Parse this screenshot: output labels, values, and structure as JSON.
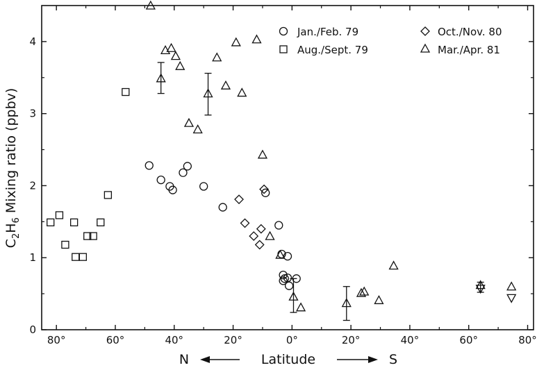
{
  "chart_data": {
    "type": "scatter",
    "title": "",
    "ylabel_parts": [
      "C",
      "2",
      "H",
      "6",
      " Mixing ratio  (ppbv)"
    ],
    "xlabel": "Latitude",
    "xlabel_left": "N",
    "xlabel_right": "S",
    "xlim": [
      85,
      -82
    ],
    "ylim": [
      0,
      4.5
    ],
    "x_ticks": [
      {
        "value": 80,
        "label": "80°"
      },
      {
        "value": 60,
        "label": "60°"
      },
      {
        "value": 40,
        "label": "40°"
      },
      {
        "value": 20,
        "label": "20°"
      },
      {
        "value": 0,
        "label": "0°"
      },
      {
        "value": -20,
        "label": "20°"
      },
      {
        "value": -40,
        "label": "40°"
      },
      {
        "value": -60,
        "label": "60°"
      },
      {
        "value": -80,
        "label": "80°"
      }
    ],
    "y_ticks": [
      {
        "value": 0,
        "label": "0"
      },
      {
        "value": 1,
        "label": "1"
      },
      {
        "value": 2,
        "label": "2"
      },
      {
        "value": 3,
        "label": "3"
      },
      {
        "value": 4,
        "label": "4"
      }
    ],
    "grid": false,
    "legend_placement": "top-right",
    "series": [
      {
        "name": "Jan./Feb. 79",
        "marker": "circle",
        "points": [
          [
            48.5,
            2.28
          ],
          [
            44.5,
            2.08
          ],
          [
            41.5,
            1.99
          ],
          [
            40.5,
            1.94
          ],
          [
            37,
            2.18
          ],
          [
            35.5,
            2.27
          ],
          [
            30,
            1.99
          ],
          [
            23.5,
            1.7
          ],
          [
            9,
            1.9
          ],
          [
            4.5,
            1.45
          ],
          [
            3.5,
            1.05
          ],
          [
            3,
            0.76
          ],
          [
            3,
            0.68
          ],
          [
            2.5,
            0.71
          ],
          [
            1.5,
            1.02
          ],
          [
            1.5,
            0.72
          ],
          [
            1,
            0.61
          ],
          [
            -1.5,
            0.71
          ]
        ]
      },
      {
        "name": "Aug./Sept. 79",
        "marker": "square",
        "points": [
          [
            82,
            1.49
          ],
          [
            79,
            1.59
          ],
          [
            77,
            1.18
          ],
          [
            74,
            1.49
          ],
          [
            73.5,
            1.01
          ],
          [
            71,
            1.01
          ],
          [
            69.5,
            1.3
          ],
          [
            67.5,
            1.3
          ],
          [
            65,
            1.49
          ],
          [
            62.5,
            1.87
          ],
          [
            56.5,
            3.3
          ]
        ]
      },
      {
        "name": "Oct./Nov. 80",
        "marker": "diamond",
        "points": [
          [
            18,
            1.81
          ],
          [
            16,
            1.48
          ],
          [
            13,
            1.3
          ],
          [
            11,
            1.18
          ],
          [
            10.5,
            1.4
          ],
          [
            9.5,
            1.95
          ]
        ]
      },
      {
        "name": "Mar./Apr. 81",
        "marker": "triangle",
        "points": [
          [
            48,
            4.5
          ],
          [
            43,
            3.88
          ],
          [
            41,
            3.91
          ],
          [
            39.5,
            3.8
          ],
          [
            38,
            3.66
          ],
          [
            44.5,
            3.49
          ],
          [
            35,
            2.87
          ],
          [
            32,
            2.78
          ],
          [
            28.5,
            3.28
          ],
          [
            25.5,
            3.78
          ],
          [
            22.5,
            3.39
          ],
          [
            19,
            3.99
          ],
          [
            17,
            3.29
          ],
          [
            12,
            4.03
          ],
          [
            10,
            2.43
          ],
          [
            7.5,
            1.3
          ],
          [
            4,
            1.04
          ],
          [
            -0.5,
            0.46
          ],
          [
            -3,
            0.31
          ],
          [
            -18.5,
            0.37
          ],
          [
            -23.5,
            0.51
          ],
          [
            -24.5,
            0.53
          ],
          [
            -29.5,
            0.41
          ],
          [
            -34.5,
            0.89
          ],
          [
            -64,
            0.62
          ],
          [
            -74.5,
            0.6
          ]
        ]
      },
      {
        "name": "",
        "marker": "triangle-down",
        "points": [
          [
            -64,
            0.57
          ],
          [
            -74.5,
            0.44
          ]
        ]
      }
    ],
    "error_bars": [
      {
        "x": 44.5,
        "y": 3.49,
        "low": 3.28,
        "high": 3.71
      },
      {
        "x": 28.5,
        "y": 3.28,
        "low": 2.98,
        "high": 3.56
      },
      {
        "x": -0.5,
        "y": 0.46,
        "low": 0.24,
        "high": 0.71
      },
      {
        "x": -18.5,
        "y": 0.37,
        "low": 0.13,
        "high": 0.6
      },
      {
        "x": -64,
        "y": 0.6,
        "low": 0.52,
        "high": 0.66
      }
    ]
  }
}
